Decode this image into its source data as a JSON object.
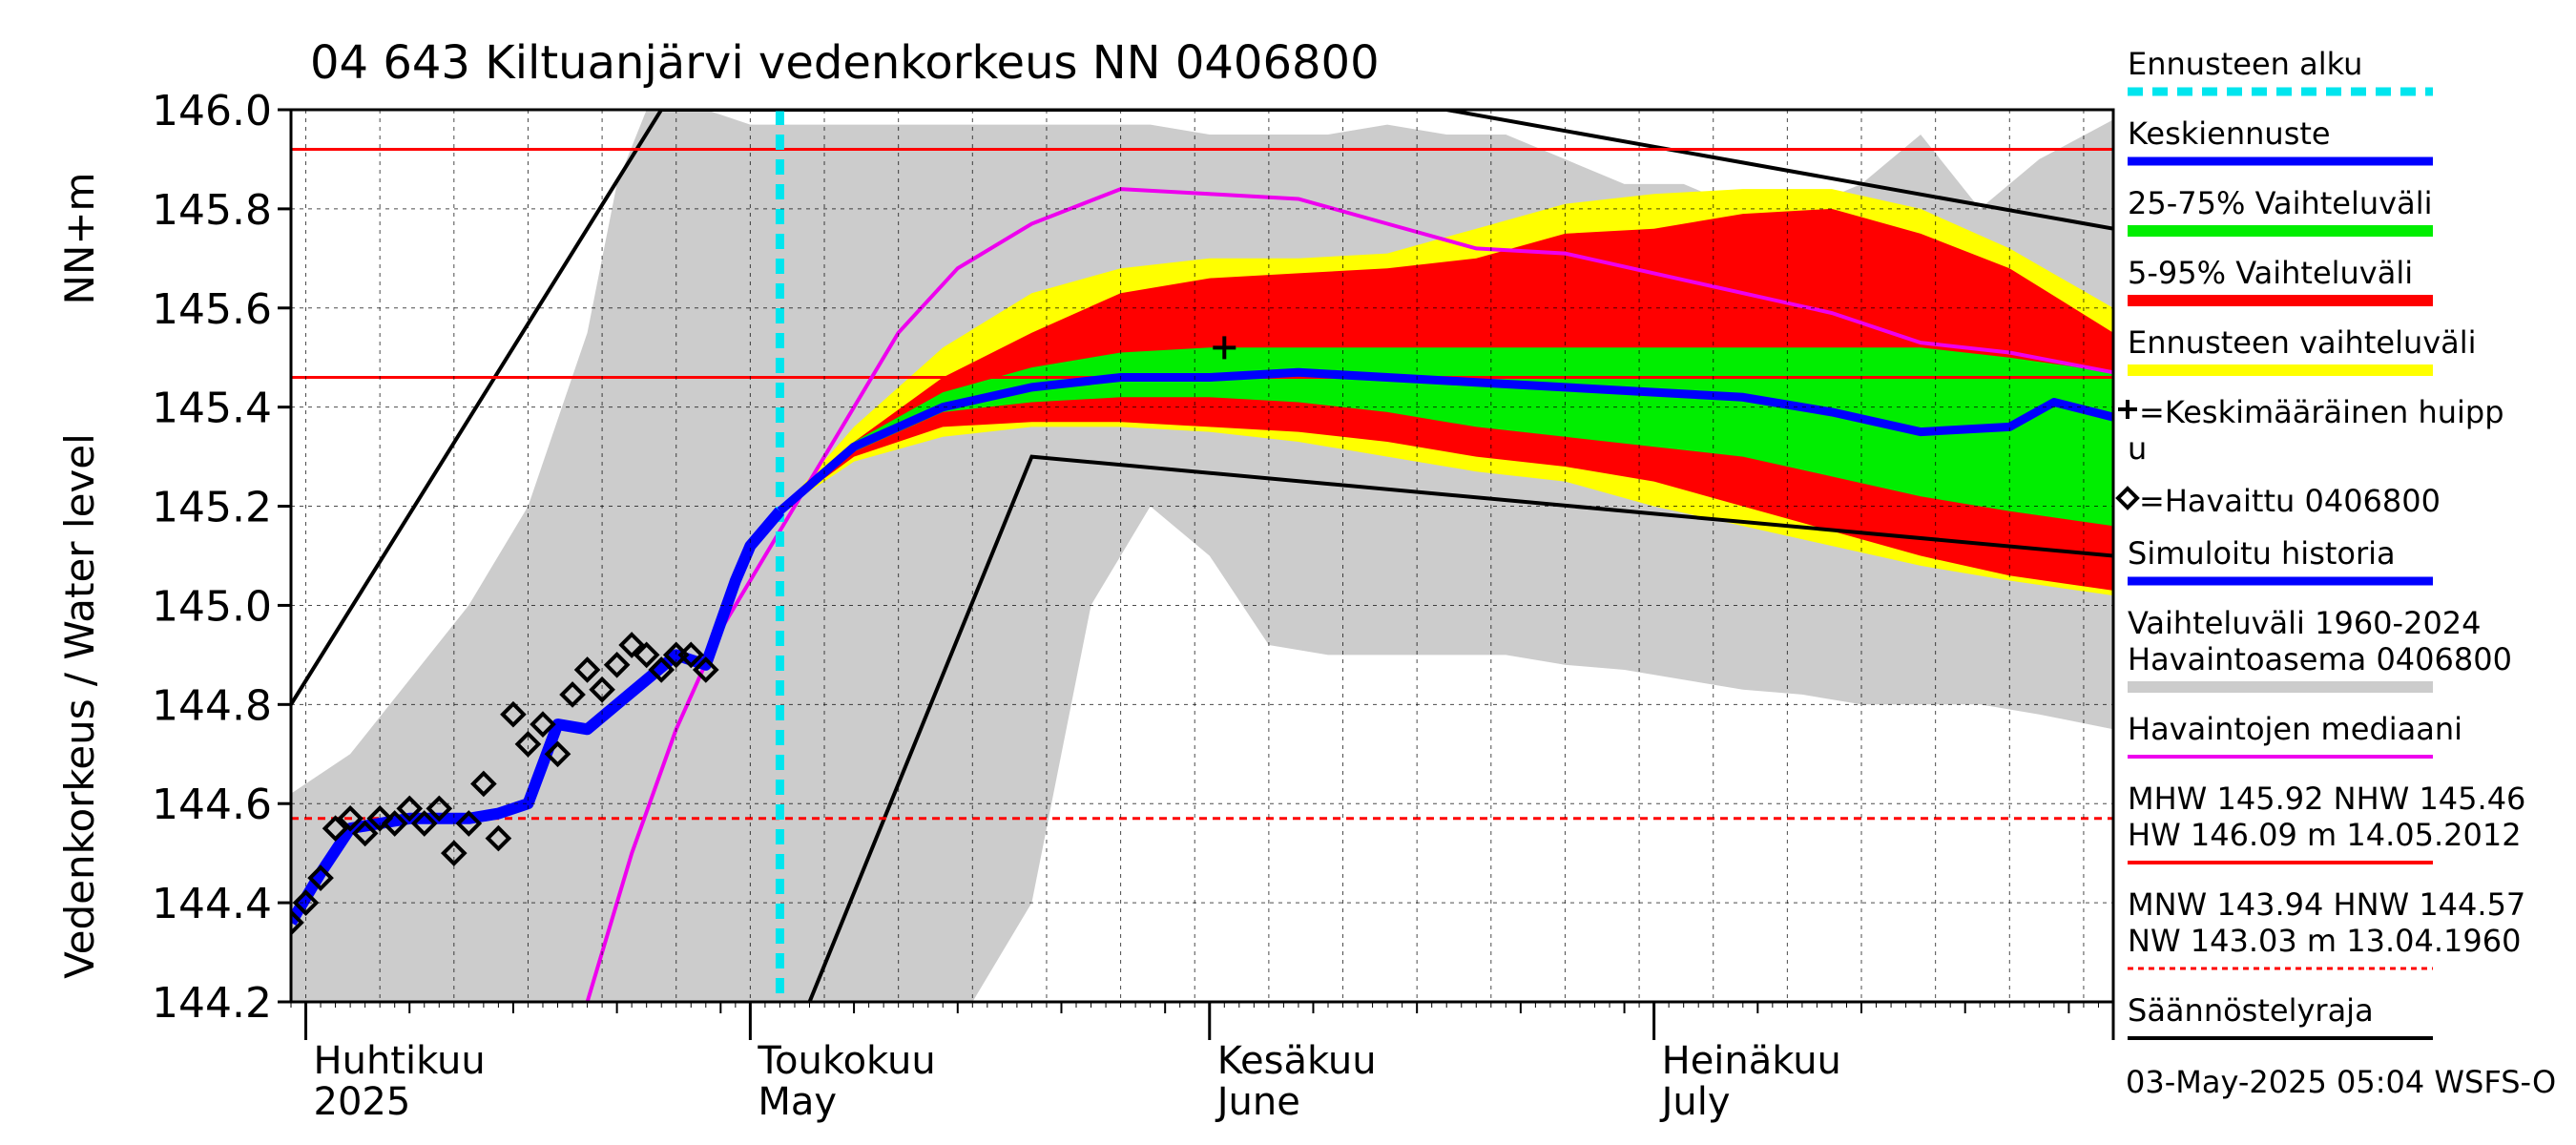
{
  "chart_data": {
    "type": "area",
    "title": "04 643 Kiltuanjärvi vedenkorkeus NN 0406800",
    "ylabel": "Vedenkorkeus / Water level",
    "yunit": "NN+m",
    "ylim": [
      144.2,
      146.0
    ],
    "yticks": [
      "144.2",
      "144.4",
      "144.6",
      "144.8",
      "145.0",
      "145.2",
      "145.4",
      "145.6",
      "145.8",
      "146.0"
    ],
    "xlim": [
      "2025-03-31",
      "2025-08-01"
    ],
    "month_labels": [
      {
        "date": "2025-04-01",
        "fi": "Huhtikuu",
        "en": "2025"
      },
      {
        "date": "2025-05-01",
        "fi": "Toukokuu",
        "en": "May"
      },
      {
        "date": "2025-06-01",
        "fi": "Kesäkuu",
        "en": "June"
      },
      {
        "date": "2025-07-01",
        "fi": "Heinäkuu",
        "en": "July"
      }
    ],
    "forecast_start": "2025-05-03",
    "reference_lines": {
      "MHW": 145.92,
      "NHW": 145.46,
      "HNW": 144.57
    },
    "bands": {
      "variation_1960_2024": {
        "x": [
          "2025-03-31",
          "2025-04-04",
          "2025-04-08",
          "2025-04-12",
          "2025-04-16",
          "2025-04-20",
          "2025-04-22",
          "2025-04-24",
          "2025-04-26",
          "2025-04-28",
          "2025-05-01",
          "2025-05-04",
          "2025-05-08",
          "2025-05-12",
          "2025-05-16",
          "2025-05-20",
          "2025-05-24",
          "2025-05-28",
          "2025-06-01",
          "2025-06-05",
          "2025-06-09",
          "2025-06-13",
          "2025-06-17",
          "2025-06-21",
          "2025-06-25",
          "2025-06-29",
          "2025-07-03",
          "2025-07-07",
          "2025-07-11",
          "2025-07-15",
          "2025-07-19",
          "2025-07-23",
          "2025-07-27",
          "2025-08-01"
        ],
        "upper": [
          144.62,
          144.7,
          144.85,
          145.0,
          145.2,
          145.55,
          145.85,
          146.0,
          146.0,
          146.0,
          145.97,
          145.97,
          145.97,
          145.97,
          145.97,
          145.97,
          145.97,
          145.97,
          145.95,
          145.95,
          145.95,
          145.97,
          145.95,
          145.95,
          145.9,
          145.85,
          145.85,
          145.8,
          145.8,
          145.85,
          145.95,
          145.8,
          145.9,
          145.98
        ],
        "lower": [
          144.2,
          144.2,
          144.2,
          144.2,
          144.2,
          144.2,
          144.2,
          144.2,
          144.2,
          144.2,
          144.2,
          144.2,
          144.2,
          144.2,
          144.2,
          144.4,
          145.0,
          145.2,
          145.1,
          144.92,
          144.9,
          144.9,
          144.9,
          144.9,
          144.88,
          144.87,
          144.85,
          144.83,
          144.82,
          144.8,
          144.8,
          144.8,
          144.78,
          144.75
        ]
      },
      "forecast_range": {
        "x": [
          "2025-05-03",
          "2025-05-08",
          "2025-05-14",
          "2025-05-20",
          "2025-05-26",
          "2025-06-01",
          "2025-06-07",
          "2025-06-13",
          "2025-06-19",
          "2025-06-25",
          "2025-07-01",
          "2025-07-07",
          "2025-07-13",
          "2025-07-19",
          "2025-07-25",
          "2025-08-01"
        ],
        "upper": [
          145.19,
          145.36,
          145.52,
          145.63,
          145.68,
          145.7,
          145.7,
          145.71,
          145.76,
          145.81,
          145.83,
          145.84,
          145.84,
          145.8,
          145.72,
          145.6
        ],
        "lower": [
          145.19,
          145.29,
          145.34,
          145.36,
          145.36,
          145.35,
          145.33,
          145.3,
          145.27,
          145.25,
          145.2,
          145.16,
          145.12,
          145.08,
          145.05,
          145.02
        ]
      },
      "p5_95": {
        "x": [
          "2025-05-03",
          "2025-05-08",
          "2025-05-14",
          "2025-05-20",
          "2025-05-26",
          "2025-06-01",
          "2025-06-07",
          "2025-06-13",
          "2025-06-19",
          "2025-06-25",
          "2025-07-01",
          "2025-07-07",
          "2025-07-13",
          "2025-07-19",
          "2025-07-25",
          "2025-08-01"
        ],
        "upper": [
          145.19,
          145.33,
          145.46,
          145.55,
          145.63,
          145.66,
          145.67,
          145.68,
          145.7,
          145.75,
          145.76,
          145.79,
          145.8,
          145.75,
          145.68,
          145.55
        ],
        "lower": [
          145.19,
          145.3,
          145.36,
          145.37,
          145.37,
          145.36,
          145.35,
          145.33,
          145.3,
          145.28,
          145.25,
          145.2,
          145.15,
          145.1,
          145.06,
          145.03
        ]
      },
      "p25_75": {
        "x": [
          "2025-05-03",
          "2025-05-08",
          "2025-05-14",
          "2025-05-20",
          "2025-05-26",
          "2025-06-01",
          "2025-06-07",
          "2025-06-13",
          "2025-06-19",
          "2025-06-25",
          "2025-07-01",
          "2025-07-07",
          "2025-07-13",
          "2025-07-19",
          "2025-07-25",
          "2025-08-01"
        ],
        "upper": [
          145.19,
          145.33,
          145.43,
          145.48,
          145.51,
          145.52,
          145.52,
          145.52,
          145.52,
          145.52,
          145.52,
          145.52,
          145.52,
          145.52,
          145.5,
          145.47
        ],
        "lower": [
          145.19,
          145.31,
          145.39,
          145.41,
          145.42,
          145.42,
          145.41,
          145.39,
          145.36,
          145.34,
          145.32,
          145.3,
          145.26,
          145.22,
          145.19,
          145.16
        ]
      }
    },
    "series": [
      {
        "name": "Keskiennuste",
        "x": [
          "2025-05-03",
          "2025-05-08",
          "2025-05-14",
          "2025-05-20",
          "2025-05-26",
          "2025-06-01",
          "2025-06-07",
          "2025-06-13",
          "2025-06-19",
          "2025-06-25",
          "2025-07-01",
          "2025-07-07",
          "2025-07-13",
          "2025-07-19",
          "2025-07-25",
          "2025-07-28",
          "2025-08-01"
        ],
        "y": [
          145.19,
          145.32,
          145.4,
          145.44,
          145.46,
          145.46,
          145.47,
          145.46,
          145.45,
          145.44,
          145.43,
          145.42,
          145.39,
          145.35,
          145.36,
          145.41,
          145.38
        ]
      },
      {
        "name": "Simuloitu historia",
        "x": [
          "2025-03-31",
          "2025-04-02",
          "2025-04-04",
          "2025-04-06",
          "2025-04-08",
          "2025-04-10",
          "2025-04-12",
          "2025-04-14",
          "2025-04-16",
          "2025-04-18",
          "2025-04-20",
          "2025-04-22",
          "2025-04-24",
          "2025-04-26",
          "2025-04-28",
          "2025-04-30",
          "2025-05-01",
          "2025-05-03"
        ],
        "y": [
          144.36,
          144.46,
          144.55,
          144.56,
          144.57,
          144.57,
          144.57,
          144.58,
          144.6,
          144.76,
          144.75,
          144.8,
          144.85,
          144.9,
          144.88,
          145.05,
          145.12,
          145.19
        ]
      },
      {
        "name": "Havaintojen mediaani",
        "x": [
          "2025-04-20",
          "2025-04-23",
          "2025-04-26",
          "2025-04-29",
          "2025-05-03",
          "2025-05-07",
          "2025-05-11",
          "2025-05-15",
          "2025-05-20",
          "2025-05-26",
          "2025-06-01",
          "2025-06-07",
          "2025-06-13",
          "2025-06-19",
          "2025-06-25",
          "2025-07-01",
          "2025-07-07",
          "2025-07-13",
          "2025-07-19",
          "2025-07-25",
          "2025-08-01"
        ],
        "y": [
          144.2,
          144.5,
          144.75,
          144.95,
          145.15,
          145.35,
          145.55,
          145.68,
          145.77,
          145.84,
          145.83,
          145.82,
          145.77,
          145.72,
          145.71,
          145.67,
          145.63,
          145.59,
          145.53,
          145.51,
          145.47
        ]
      }
    ],
    "observations": {
      "name": "Havaittu 0406800",
      "x": [
        "2025-03-31",
        "2025-04-01",
        "2025-04-02",
        "2025-04-03",
        "2025-04-04",
        "2025-04-05",
        "2025-04-06",
        "2025-04-07",
        "2025-04-08",
        "2025-04-09",
        "2025-04-10",
        "2025-04-11",
        "2025-04-12",
        "2025-04-13",
        "2025-04-14",
        "2025-04-15",
        "2025-04-16",
        "2025-04-17",
        "2025-04-18",
        "2025-04-19",
        "2025-04-20",
        "2025-04-21",
        "2025-04-22",
        "2025-04-23",
        "2025-04-24",
        "2025-04-25",
        "2025-04-26",
        "2025-04-27",
        "2025-04-28"
      ],
      "y": [
        144.36,
        144.4,
        144.45,
        144.55,
        144.57,
        144.54,
        144.57,
        144.56,
        144.59,
        144.56,
        144.59,
        144.5,
        144.56,
        144.64,
        144.53,
        144.78,
        144.72,
        144.76,
        144.7,
        144.82,
        144.87,
        144.83,
        144.88,
        144.92,
        144.9,
        144.87,
        144.9,
        144.9,
        144.87
      ]
    },
    "mean_peak": {
      "name": "Keskimääräinen huippu",
      "x": "2025-06-02",
      "y": 145.52
    },
    "regulation_limits": {
      "name": "Säännöstelyraja",
      "upper": {
        "x": [
          "2025-03-31",
          "2025-04-25",
          "2025-06-17",
          "2025-08-01"
        ],
        "y": [
          144.8,
          146.0,
          146.0,
          145.76
        ]
      },
      "lower": {
        "x": [
          "2025-05-05",
          "2025-05-20",
          "2025-08-01"
        ],
        "y": [
          144.2,
          145.3,
          145.1
        ]
      }
    },
    "colors": {
      "variation": "#cccccc",
      "forecast_range": "#ffff00",
      "p5_95": "#ff0000",
      "p25_75": "#00ee00",
      "mean_forecast": "#0000ff",
      "simulated": "#0000ff",
      "median": "#ee00ee",
      "forecast_start": "#00e5ee",
      "reference": "#ff0000",
      "regulation": "#000000"
    }
  },
  "legend": {
    "placement": "right",
    "items": [
      {
        "key": "forecast_start",
        "label": "Ennusteen alku",
        "style": "dashed",
        "color": "#00e5ee"
      },
      {
        "key": "mean_forecast",
        "label": "Keskiennuste",
        "style": "line",
        "color": "#0000ff"
      },
      {
        "key": "p25_75",
        "label": "25-75% Vaihteluväli",
        "style": "band",
        "color": "#00ee00"
      },
      {
        "key": "p5_95",
        "label": "5-95% Vaihteluväli",
        "style": "band",
        "color": "#ff0000"
      },
      {
        "key": "forecast_range",
        "label": "Ennusteen vaihteluväli",
        "style": "band",
        "color": "#ffff00"
      },
      {
        "key": "mean_peak",
        "label": "=Keskimääräinen huipp",
        "label2": "u",
        "style": "plus",
        "color": "#000000"
      },
      {
        "key": "observations",
        "label": "=Havaittu 0406800",
        "style": "diamond",
        "color": "#000000"
      },
      {
        "key": "simulated",
        "label": "Simuloitu historia",
        "style": "line",
        "color": "#0000ff"
      },
      {
        "key": "variation",
        "label": "Vaihteluväli 1960-2024",
        "label2": " Havaintoasema 0406800",
        "style": "band",
        "color": "#cccccc"
      },
      {
        "key": "median",
        "label": "Havaintojen mediaani",
        "style": "thin",
        "color": "#ee00ee"
      },
      {
        "key": "high",
        "label": "MHW 145.92 NHW 145.46",
        "label2": "HW 146.09 m 14.05.2012",
        "style": "thin",
        "color": "#ff0000"
      },
      {
        "key": "low",
        "label": "MNW 143.94 HNW 144.57",
        "label2": "NW 143.03 m 13.04.1960",
        "style": "dotted",
        "color": "#ff0000"
      },
      {
        "key": "regulation",
        "label": "Säännöstelyraja",
        "style": "thin",
        "color": "#000000"
      }
    ]
  },
  "footer": {
    "timestamp": "03-May-2025 05:04 WSFS-O"
  }
}
